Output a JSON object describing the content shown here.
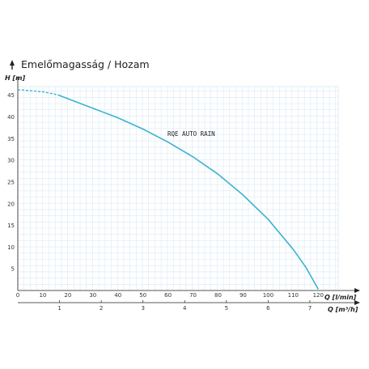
{
  "chart_data": {
    "type": "line",
    "title": "Emelőmagasság / Hozam",
    "ylabel": "H [m]",
    "xlabel": "Q [l/min]",
    "x2label": "Q [m³/h]",
    "xlim": [
      0,
      128
    ],
    "ylim": [
      0,
      47
    ],
    "x_ticks": [
      0,
      10,
      20,
      30,
      40,
      50,
      60,
      70,
      80,
      90,
      100,
      110,
      120
    ],
    "y_ticks": [
      5,
      10,
      15,
      20,
      25,
      30,
      35,
      40,
      45
    ],
    "x2_ticks": [
      1,
      2,
      3,
      4,
      5,
      6,
      7
    ],
    "grid": true,
    "series": [
      {
        "name": "RQE AUTO RAIN",
        "color": "#3bb3cf",
        "dashed_until_x": 16,
        "x": [
          0,
          10,
          16,
          20,
          30,
          40,
          50,
          60,
          70,
          80,
          90,
          100,
          110,
          115,
          120
        ],
        "y": [
          46.3,
          45.8,
          45.1,
          44.2,
          42.0,
          39.8,
          37.2,
          34.2,
          30.8,
          26.8,
          22.0,
          16.4,
          9.5,
          5.4,
          0.3
        ]
      }
    ]
  }
}
